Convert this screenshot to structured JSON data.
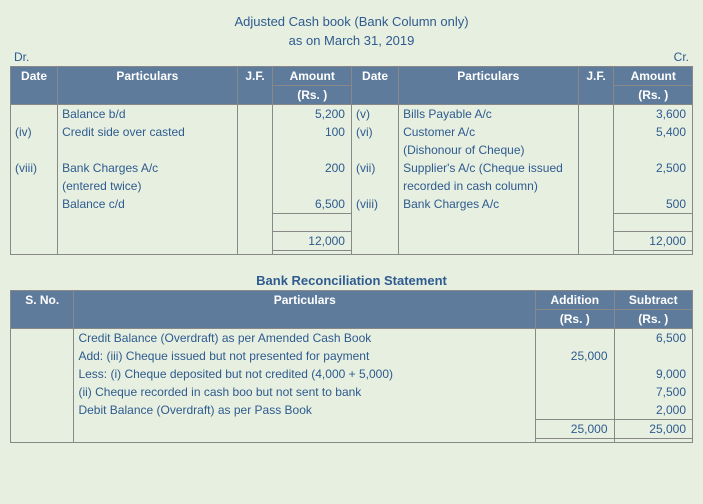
{
  "cashbook": {
    "title1": "Adjusted Cash book (Bank Column only)",
    "title2": "as on March 31, 2019",
    "dr": "Dr.",
    "cr": "Cr.",
    "hdr": {
      "date": "Date",
      "part": "Particulars",
      "jf": "J.F.",
      "amt1": "Amount",
      "amt2": "(Rs. )"
    },
    "rows": [
      {
        "dDate": "",
        "dPart": "Balance b/d",
        "dAmt": "5,200",
        "cDate": "(v)",
        "cPart": "Bills Payable A/c",
        "cAmt": "3,600"
      },
      {
        "dDate": "(iv)",
        "dPart": "Credit side over casted",
        "dAmt": "100",
        "cDate": "(vi)",
        "cPart": "Customer A/c",
        "cAmt": "5,400"
      },
      {
        "dDate": "",
        "dPart": "",
        "dAmt": "",
        "cDate": "",
        "cPart": "(Dishonour of Cheque)",
        "cAmt": ""
      },
      {
        "dDate": "(viii)",
        "dPart": "Bank Charges A/c",
        "dAmt": "200",
        "cDate": "(vii)",
        "cPart": "Supplier's A/c (Cheque issued",
        "cAmt": "2,500"
      },
      {
        "dDate": "",
        "dPart": "(entered twice)",
        "dAmt": "",
        "cDate": "",
        "cPart": "recorded in cash column)",
        "cAmt": ""
      },
      {
        "dDate": "",
        "dPart": "Balance c/d",
        "dAmt": "6,500",
        "cDate": "(viii)",
        "cPart": "Bank Charges A/c",
        "cAmt": "500"
      }
    ],
    "total": {
      "d": "12,000",
      "c": "12,000"
    }
  },
  "brs": {
    "title": "Bank Reconciliation Statement",
    "hdr": {
      "sno": "S. No.",
      "part": "Particulars",
      "add1": "Addition",
      "add2": "(Rs. )",
      "sub1": "Subtract",
      "sub2": "(Rs. )"
    },
    "rows": [
      {
        "part": "Credit Balance (Overdraft) as per Amended Cash Book",
        "add": "",
        "sub": "6,500"
      },
      {
        "part": "Add: (iii) Cheque issued but not presented for payment",
        "add": "25,000",
        "sub": ""
      },
      {
        "part": "Less: (i) Cheque deposited but not credited (4,000 + 5,000)",
        "add": "",
        "sub": "9,000"
      },
      {
        "part": "(ii) Cheque recorded in cash boo but not sent to bank",
        "add": "",
        "sub": "7,500"
      },
      {
        "part": "Debit Balance (Overdraft) as per Pass Book",
        "add": "",
        "sub": "2,000"
      }
    ],
    "total": {
      "add": "25,000",
      "sub": "25,000"
    }
  }
}
